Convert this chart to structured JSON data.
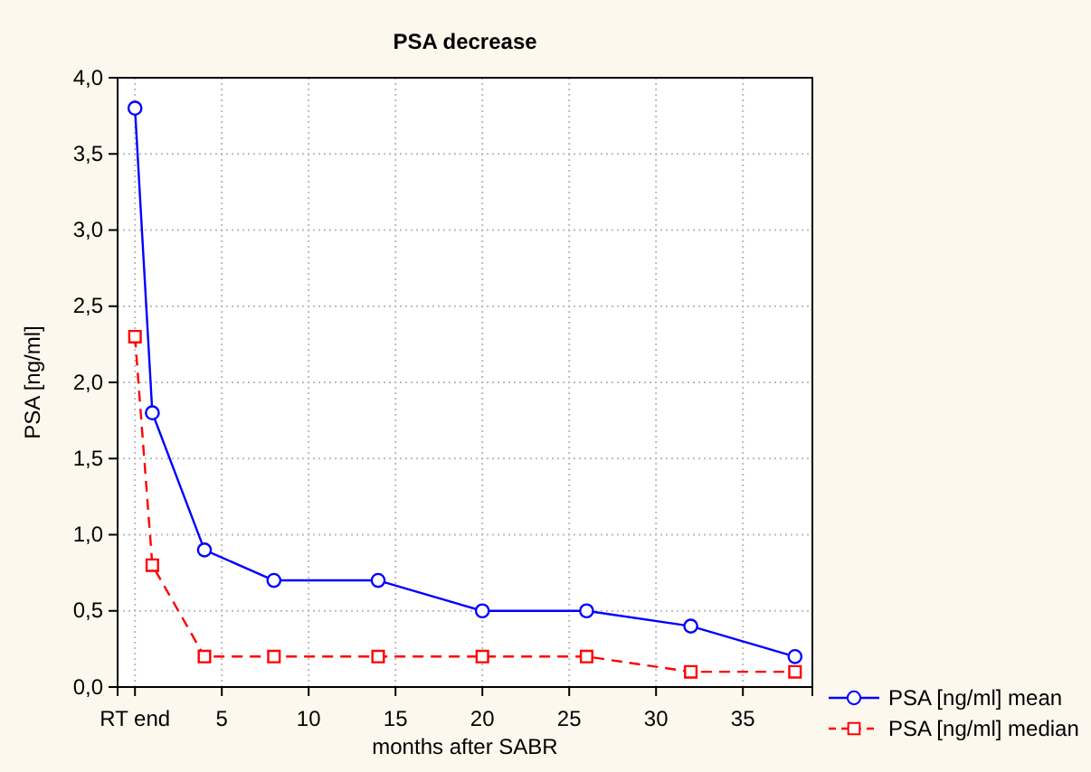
{
  "chart_data": {
    "type": "line",
    "title": "PSA decrease",
    "xlabel": "months after SABR",
    "ylabel": "PSA [ng/ml]",
    "xlim": [
      -1,
      39
    ],
    "xticks": [
      {
        "value": 0,
        "label": "RT end"
      },
      5,
      10,
      15,
      20,
      25,
      30,
      35
    ],
    "ylim": [
      0,
      4
    ],
    "yticks": [
      {
        "value": 0,
        "label": "0,0"
      },
      {
        "value": 0.5,
        "label": "0,5"
      },
      {
        "value": 1,
        "label": "1,0"
      },
      {
        "value": 1.5,
        "label": "1,5"
      },
      {
        "value": 2,
        "label": "2,0"
      },
      {
        "value": 2.5,
        "label": "2,5"
      },
      {
        "value": 3,
        "label": "3,0"
      },
      {
        "value": 3.5,
        "label": "3,5"
      },
      {
        "value": 4,
        "label": "4,0"
      }
    ],
    "grid": true,
    "legend": "bottom right",
    "series": [
      {
        "name": "PSA [ng/ml] mean",
        "color": "#0000ff",
        "marker": "circle",
        "line_style": "solid",
        "x": [
          0,
          1,
          4,
          8,
          14,
          20,
          26,
          32,
          38
        ],
        "values": [
          3.8,
          1.8,
          0.9,
          0.7,
          0.7,
          0.5,
          0.5,
          0.4,
          0.2
        ]
      },
      {
        "name": "PSA [ng/ml] median",
        "color": "#ff0000",
        "marker": "square",
        "line_style": "dashed",
        "x": [
          0,
          1,
          4,
          8,
          14,
          20,
          26,
          32,
          38
        ],
        "values": [
          2.3,
          0.8,
          0.2,
          0.2,
          0.2,
          0.2,
          0.2,
          0.1,
          0.1
        ]
      }
    ]
  }
}
